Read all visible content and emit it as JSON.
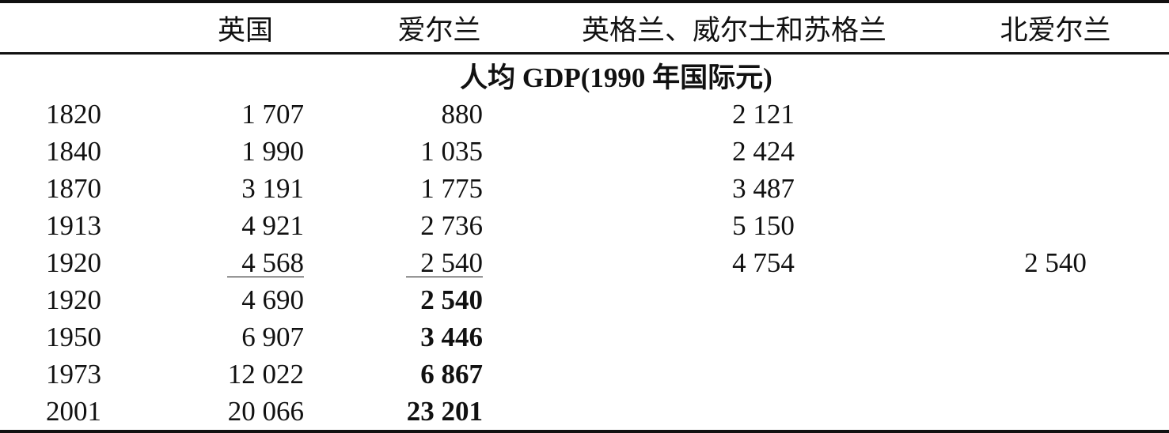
{
  "table": {
    "header": [
      null,
      "英国",
      "爱尔兰",
      "英格兰、威尔士和苏格兰",
      "北爱尔兰"
    ],
    "subheader": "人均 GDP(1990 年国际元)",
    "rows": [
      [
        "1820",
        "1 707",
        "880",
        "2 121",
        null
      ],
      [
        "1840",
        "1 990",
        "1 035",
        "2 424",
        null
      ],
      [
        "1870",
        "3 191",
        "1 775",
        "3 487",
        null
      ],
      [
        "1913",
        "4 921",
        "2 736",
        "5 150",
        null
      ],
      [
        "1920",
        "4 568",
        "2 540",
        "4 754",
        "2 540"
      ],
      [
        "1920",
        "4 690",
        "2 540",
        null,
        null
      ],
      [
        "1950",
        "6 907",
        "3 446",
        null,
        null
      ],
      [
        "1973",
        "12 022",
        "6 867",
        null,
        null
      ],
      [
        "2001",
        "20 066",
        "23 201",
        null,
        null
      ]
    ]
  }
}
